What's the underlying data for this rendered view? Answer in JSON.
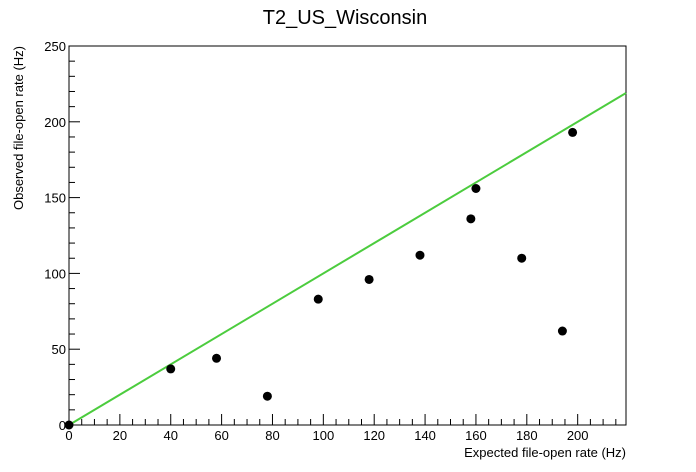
{
  "chart_data": {
    "type": "scatter",
    "title": "T2_US_Wisconsin",
    "xlabel": "Expected file-open rate (Hz)",
    "ylabel": "Observed file-open rate (Hz)",
    "xlim": [
      0,
      219
    ],
    "ylim": [
      0,
      250
    ],
    "x_ticks": [
      0,
      20,
      40,
      60,
      80,
      100,
      120,
      140,
      160,
      180,
      200
    ],
    "y_ticks": [
      0,
      50,
      100,
      150,
      200,
      250
    ],
    "grid": false,
    "points": [
      {
        "x": 0,
        "y": 0
      },
      {
        "x": 40,
        "y": 37
      },
      {
        "x": 58,
        "y": 44
      },
      {
        "x": 78,
        "y": 19
      },
      {
        "x": 98,
        "y": 83
      },
      {
        "x": 118,
        "y": 96
      },
      {
        "x": 138,
        "y": 112
      },
      {
        "x": 158,
        "y": 136
      },
      {
        "x": 160,
        "y": 156
      },
      {
        "x": 178,
        "y": 110
      },
      {
        "x": 194,
        "y": 62
      },
      {
        "x": 198,
        "y": 193
      }
    ],
    "reference_line": {
      "x": [
        0,
        219
      ],
      "y": [
        0,
        219
      ]
    },
    "colors": {
      "points": "#000000",
      "line": "#4ccc3e"
    }
  }
}
